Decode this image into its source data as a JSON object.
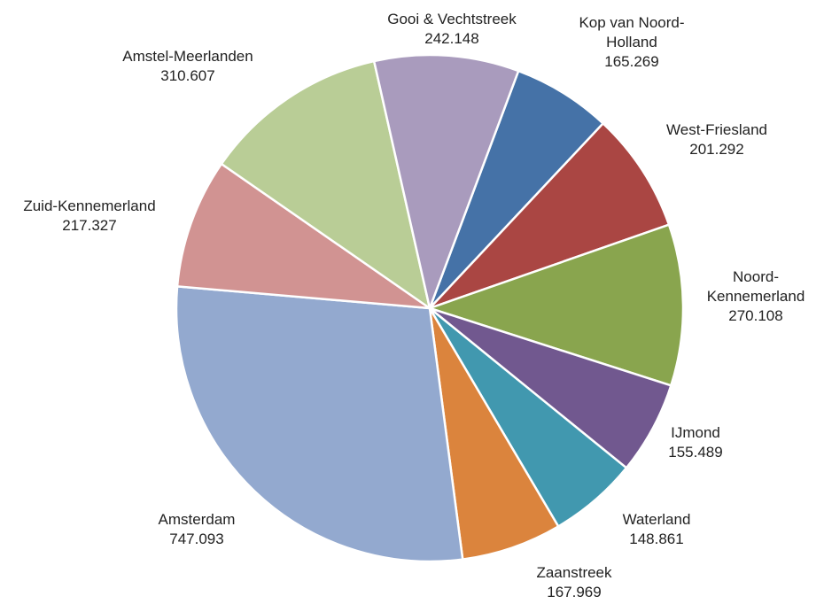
{
  "chart_data": {
    "type": "pie",
    "title": "",
    "start_category": "Kop van Noord-Holland",
    "direction": "clockwise",
    "slices": [
      {
        "name": "Kop van Noord-Holland",
        "label_lines": [
          "Kop van Noord-",
          "Holland"
        ],
        "value": 165269,
        "value_label": "165.269",
        "color": "#4572a7"
      },
      {
        "name": "West-Friesland",
        "label_lines": [
          "West-Friesland"
        ],
        "value": 201292,
        "value_label": "201.292",
        "color": "#aa4643"
      },
      {
        "name": "Noord-Kennemerland",
        "label_lines": [
          "Noord-",
          "Kennemerland"
        ],
        "value": 270108,
        "value_label": "270.108",
        "color": "#89a54e"
      },
      {
        "name": "IJmond",
        "label_lines": [
          "IJmond"
        ],
        "value": 155489,
        "value_label": "155.489",
        "color": "#71588f"
      },
      {
        "name": "Waterland",
        "label_lines": [
          "Waterland"
        ],
        "value": 148861,
        "value_label": "148.861",
        "color": "#4198af"
      },
      {
        "name": "Zaanstreek",
        "label_lines": [
          "Zaanstreek"
        ],
        "value": 167969,
        "value_label": "167.969",
        "color": "#db843d"
      },
      {
        "name": "Amsterdam",
        "label_lines": [
          "Amsterdam"
        ],
        "value": 747093,
        "value_label": "747.093",
        "color": "#93a9cf"
      },
      {
        "name": "Zuid-Kennemerland",
        "label_lines": [
          "Zuid-Kennemerland"
        ],
        "value": 217327,
        "value_label": "217.327",
        "color": "#d19392"
      },
      {
        "name": "Amstel-Meerlanden",
        "label_lines": [
          "Amstel-Meerlanden"
        ],
        "value": 310607,
        "value_label": "310.607",
        "color": "#b9cd96"
      },
      {
        "name": "Gooi & Vechtstreek",
        "label_lines": [
          "Gooi & Vechtstreek"
        ],
        "value": 242148,
        "value_label": "242.148",
        "color": "#a99bbd"
      }
    ]
  }
}
